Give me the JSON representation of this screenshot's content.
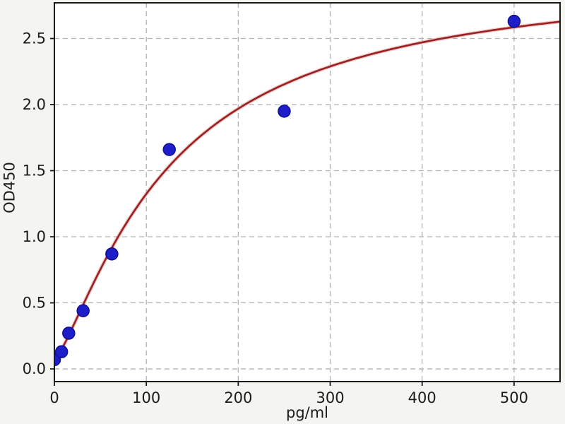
{
  "figure": {
    "background_color": "#f4f4f1",
    "plot_background_color": "#ffffff",
    "spine_color": "#1a1a1a",
    "grid_color": "#b2b2b2",
    "tick_label_color": "#1c1c1c",
    "marker_fill_color": "#1e1ec8",
    "marker_edge_color": "#0f0f94",
    "curve_color": "#992121",
    "curve_halo_color": "#e49c9c"
  },
  "chart_data": {
    "type": "scatter",
    "title": "",
    "xlabel": "pg/ml",
    "ylabel": "OD450",
    "xlim": [
      0,
      550
    ],
    "ylim": [
      -0.096,
      2.77
    ],
    "x_ticks": [
      0,
      100,
      200,
      300,
      400,
      500
    ],
    "x_tick_labels": [
      "0",
      "100",
      "200",
      "300",
      "400",
      "500"
    ],
    "y_ticks": [
      0.0,
      0.5,
      1.0,
      1.5,
      2.0,
      2.5
    ],
    "y_tick_labels": [
      "0.0",
      "0.5",
      "1.0",
      "1.5",
      "2.0",
      "2.5"
    ],
    "grid": true,
    "legend": "none",
    "series": [
      {
        "name": "standard-points",
        "style": "scatter",
        "x": [
          0,
          7.8,
          15.6,
          31.25,
          62.5,
          125,
          250,
          500
        ],
        "y": [
          0.07,
          0.13,
          0.27,
          0.44,
          0.87,
          1.66,
          1.95,
          2.63
        ]
      },
      {
        "name": "fitted-curve",
        "style": "line",
        "fit_model": "4PL",
        "fit_params": {
          "a": 0.07,
          "b": 1.3,
          "c": 125.0,
          "d": 3.0
        },
        "x_range": [
          0,
          550
        ]
      }
    ]
  }
}
